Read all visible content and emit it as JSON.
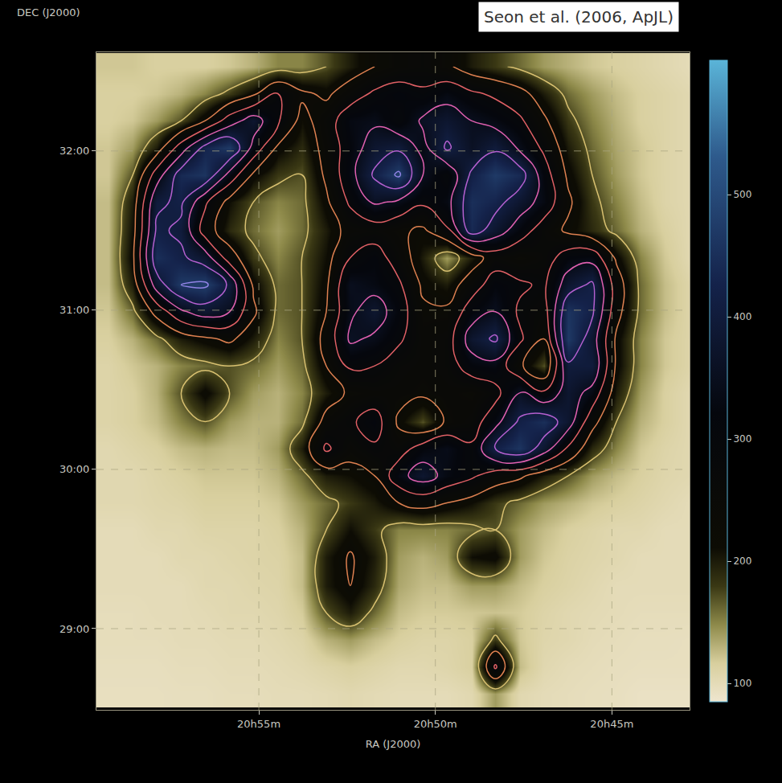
{
  "chart_data": {
    "type": "heatmap",
    "annotations": [
      "Seon et al. (2006, ApJL)"
    ],
    "x_label": "RA (J2000)",
    "y_label": "DEC (J2000)",
    "xlim": [
      59.6,
      42.8
    ],
    "ylim": [
      28.49,
      32.62
    ],
    "xticks": [
      {
        "value": 55,
        "label": "20h55m"
      },
      {
        "value": 50,
        "label": "20h50m"
      },
      {
        "value": 45,
        "label": "20h45m"
      }
    ],
    "yticks": [
      {
        "value": 29,
        "label": "29:00"
      },
      {
        "value": 30,
        "label": "30:00"
      },
      {
        "value": 31,
        "label": "31:00"
      },
      {
        "value": 32,
        "label": "32:00"
      }
    ],
    "grid": true,
    "x": [
      59.26,
      58.57,
      57.89,
      57.2,
      56.52,
      55.83,
      55.15,
      54.46,
      53.78,
      53.09,
      52.41,
      51.72,
      51.04,
      50.35,
      49.67,
      48.98,
      48.3,
      47.61,
      46.93,
      46.24,
      45.56,
      44.87,
      44.19,
      43.5,
      42.82
    ],
    "y": [
      32.53,
      32.36,
      32.19,
      32.02,
      31.85,
      31.68,
      31.5,
      31.33,
      31.16,
      30.99,
      30.82,
      30.65,
      30.48,
      30.3,
      30.13,
      29.96,
      29.79,
      29.62,
      29.45,
      29.27,
      29.1,
      28.93,
      28.76,
      28.59
    ],
    "z": [
      [
        120,
        120,
        115,
        115,
        115,
        120,
        130,
        150,
        150,
        170,
        200,
        230,
        250,
        260,
        240,
        200,
        180,
        160,
        140,
        130,
        120,
        115,
        110,
        105,
        100
      ],
      [
        115,
        115,
        120,
        130,
        150,
        180,
        220,
        290,
        240,
        220,
        260,
        300,
        320,
        300,
        330,
        300,
        280,
        250,
        200,
        160,
        140,
        125,
        115,
        110,
        105
      ],
      [
        115,
        120,
        140,
        170,
        230,
        320,
        380,
        300,
        210,
        260,
        330,
        340,
        300,
        360,
        380,
        350,
        330,
        300,
        240,
        180,
        150,
        130,
        115,
        110,
        105
      ],
      [
        120,
        140,
        200,
        320,
        430,
        470,
        330,
        220,
        190,
        250,
        320,
        380,
        400,
        330,
        420,
        360,
        400,
        340,
        280,
        200,
        160,
        135,
        120,
        110,
        105
      ],
      [
        120,
        170,
        320,
        440,
        460,
        330,
        220,
        180,
        170,
        240,
        330,
        420,
        480,
        350,
        300,
        420,
        470,
        440,
        320,
        220,
        170,
        140,
        120,
        110,
        105
      ],
      [
        125,
        200,
        400,
        420,
        300,
        210,
        170,
        150,
        160,
        220,
        300,
        360,
        340,
        300,
        330,
        450,
        430,
        380,
        330,
        240,
        180,
        150,
        125,
        110,
        105
      ],
      [
        125,
        210,
        420,
        400,
        260,
        190,
        160,
        140,
        160,
        200,
        250,
        260,
        240,
        220,
        280,
        440,
        380,
        320,
        260,
        220,
        190,
        160,
        130,
        115,
        105
      ],
      [
        125,
        220,
        450,
        420,
        380,
        260,
        180,
        150,
        170,
        210,
        290,
        320,
        260,
        200,
        140,
        200,
        260,
        240,
        260,
        320,
        330,
        220,
        150,
        120,
        105
      ],
      [
        125,
        200,
        380,
        470,
        480,
        400,
        220,
        160,
        170,
        220,
        350,
        330,
        300,
        220,
        200,
        260,
        320,
        300,
        280,
        380,
        420,
        260,
        160,
        125,
        110
      ],
      [
        120,
        160,
        250,
        340,
        380,
        350,
        240,
        160,
        170,
        230,
        340,
        380,
        320,
        240,
        240,
        320,
        350,
        280,
        260,
        460,
        420,
        250,
        160,
        125,
        110
      ],
      [
        115,
        130,
        160,
        200,
        220,
        240,
        200,
        150,
        170,
        250,
        360,
        340,
        300,
        250,
        260,
        380,
        420,
        300,
        230,
        470,
        380,
        220,
        150,
        120,
        110
      ],
      [
        110,
        120,
        130,
        150,
        160,
        170,
        160,
        140,
        160,
        230,
        300,
        290,
        260,
        250,
        260,
        320,
        330,
        240,
        170,
        400,
        400,
        220,
        150,
        120,
        110
      ],
      [
        110,
        115,
        130,
        170,
        220,
        170,
        140,
        130,
        150,
        200,
        240,
        250,
        250,
        240,
        250,
        240,
        270,
        360,
        300,
        380,
        330,
        200,
        140,
        115,
        105
      ],
      [
        110,
        115,
        125,
        150,
        170,
        140,
        130,
        130,
        160,
        250,
        280,
        320,
        220,
        170,
        240,
        260,
        330,
        420,
        450,
        380,
        250,
        170,
        130,
        115,
        105
      ],
      [
        105,
        110,
        115,
        125,
        130,
        125,
        125,
        140,
        200,
        300,
        250,
        280,
        260,
        320,
        340,
        300,
        420,
        460,
        380,
        280,
        190,
        150,
        120,
        110,
        105
      ],
      [
        105,
        105,
        110,
        115,
        120,
        120,
        120,
        130,
        160,
        200,
        210,
        230,
        330,
        380,
        330,
        300,
        260,
        240,
        200,
        170,
        140,
        125,
        115,
        108,
        105
      ],
      [
        105,
        105,
        108,
        110,
        115,
        115,
        115,
        120,
        140,
        160,
        180,
        200,
        230,
        250,
        230,
        210,
        180,
        160,
        140,
        130,
        120,
        115,
        110,
        105,
        100
      ],
      [
        100,
        100,
        105,
        105,
        110,
        110,
        110,
        115,
        130,
        170,
        210,
        180,
        150,
        150,
        150,
        160,
        170,
        140,
        125,
        115,
        110,
        105,
        105,
        100,
        100
      ],
      [
        100,
        100,
        100,
        105,
        105,
        108,
        110,
        112,
        125,
        200,
        235,
        200,
        140,
        130,
        140,
        210,
        220,
        140,
        120,
        112,
        108,
        105,
        100,
        100,
        100
      ],
      [
        100,
        100,
        100,
        100,
        105,
        105,
        108,
        110,
        125,
        200,
        230,
        190,
        135,
        125,
        125,
        140,
        140,
        125,
        115,
        110,
        105,
        100,
        100,
        100,
        100
      ],
      [
        98,
        98,
        100,
        100,
        102,
        105,
        105,
        108,
        118,
        170,
        200,
        160,
        125,
        118,
        118,
        120,
        122,
        118,
        110,
        105,
        102,
        100,
        98,
        98,
        98
      ],
      [
        98,
        98,
        98,
        100,
        100,
        102,
        102,
        105,
        110,
        130,
        140,
        125,
        115,
        110,
        110,
        115,
        180,
        120,
        108,
        105,
        100,
        98,
        96,
        96,
        95
      ],
      [
        96,
        96,
        96,
        98,
        98,
        100,
        100,
        102,
        105,
        110,
        115,
        110,
        105,
        105,
        108,
        115,
        300,
        125,
        105,
        100,
        98,
        96,
        95,
        95,
        95
      ],
      [
        95,
        95,
        95,
        96,
        96,
        98,
        98,
        100,
        100,
        102,
        105,
        102,
        100,
        100,
        100,
        105,
        140,
        105,
        100,
        98,
        96,
        95,
        92,
        92,
        92
      ]
    ],
    "contours": {
      "start": 170,
      "end": 530,
      "size": 60
    },
    "colorbar": {
      "range": [
        85,
        610
      ],
      "ticks": [
        100,
        200,
        300,
        400,
        500
      ]
    }
  }
}
